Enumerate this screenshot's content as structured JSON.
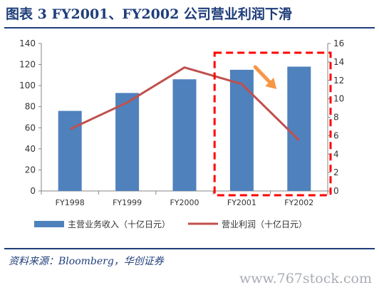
{
  "figure": {
    "title": "图表 3   FY2001、FY2002 公司营业利润下滑",
    "source": "资料来源：Bloomberg，华创证券",
    "watermark": "www.767stock.com"
  },
  "chart_data": {
    "type": "bar",
    "categories": [
      "FY1998",
      "FY1999",
      "FY2000",
      "FY2001",
      "FY2002"
    ],
    "series": [
      {
        "name": "主营业务收入（十亿日元）",
        "type": "bar",
        "axis": "left",
        "color": "#4f81bd",
        "values": [
          76,
          93,
          106,
          115,
          118
        ]
      },
      {
        "name": "营业利润（十亿日元）",
        "type": "line",
        "axis": "right",
        "color": "#c0504d",
        "values": [
          6.7,
          9.6,
          13.4,
          11.6,
          5.5
        ]
      }
    ],
    "y_left": {
      "min": 0,
      "max": 140,
      "ticks": [
        0,
        20,
        40,
        60,
        80,
        100,
        120,
        140
      ]
    },
    "y_right": {
      "min": 0,
      "max": 16,
      "ticks": [
        0,
        2,
        4,
        6,
        8,
        10,
        12,
        14,
        16
      ]
    },
    "highlight": {
      "categories": [
        "FY2001",
        "FY2002"
      ],
      "style": "red dashed box with orange arrow",
      "color": "#ff0000"
    },
    "legend_position": "bottom",
    "grid": false
  }
}
